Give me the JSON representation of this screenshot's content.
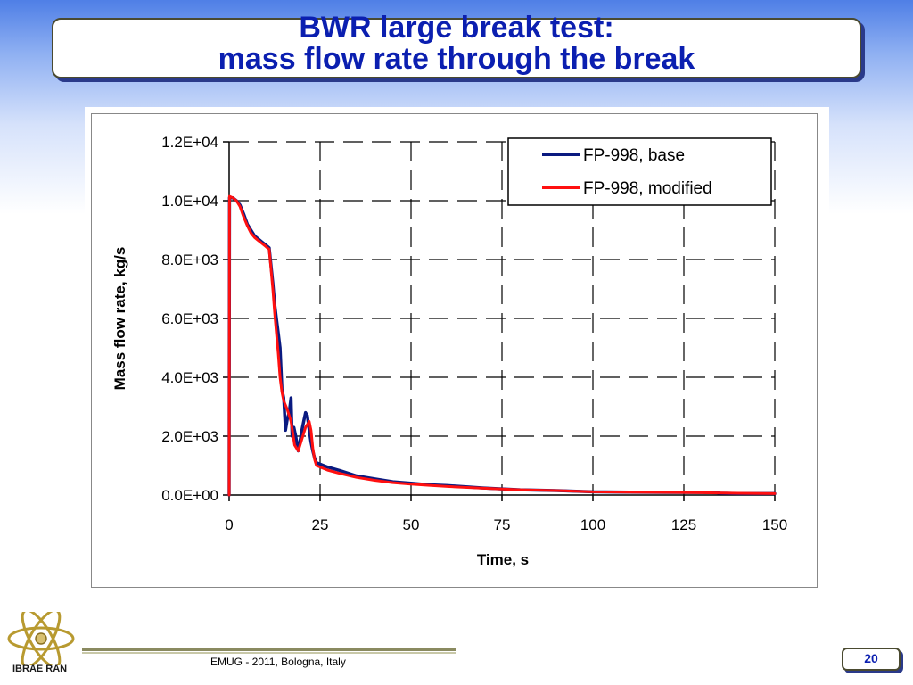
{
  "slide": {
    "title_line1": "BWR large break test:",
    "title_line2": "mass flow rate through the break",
    "footer": "EMUG - 2011, Bologna, Italy",
    "page_number": "20",
    "logo_text": "IBRAE RAN"
  },
  "colors": {
    "title": "#0b1fb0",
    "base_series": "#0a1a80",
    "modified_series": "#ff1010",
    "grid": "#000000"
  },
  "chart_data": {
    "type": "line",
    "title": "",
    "xlabel": "Time, s",
    "ylabel": "Mass flow rate, kg/s",
    "xlim": [
      0,
      150
    ],
    "ylim": [
      0,
      12000
    ],
    "x_ticks": [
      "0",
      "25",
      "50",
      "75",
      "100",
      "125",
      "150"
    ],
    "y_ticks": [
      "0.0E+00",
      "2.0E+03",
      "4.0E+03",
      "6.0E+03",
      "8.0E+03",
      "1.0E+04",
      "1.2E+04"
    ],
    "grid": true,
    "grid_style": "dashed",
    "legend_position": "top-right",
    "series": [
      {
        "name": "FP-998, base",
        "color": "#0a1a80",
        "x": [
          0,
          0.1,
          1,
          2,
          3,
          4,
          5,
          6,
          7,
          8,
          9,
          10,
          10.5,
          11,
          12,
          12.5,
          13,
          13.5,
          14,
          14.5,
          15,
          15.5,
          16,
          16.5,
          17,
          17.3,
          17.8,
          18.3,
          19,
          20,
          20.5,
          21,
          21.5,
          22,
          22.5,
          23,
          23.5,
          24,
          25,
          27,
          30,
          35,
          40,
          45,
          50,
          55,
          60,
          70,
          80,
          90,
          100,
          110,
          120,
          130,
          134,
          135,
          140,
          150
        ],
        "y": [
          0,
          10100,
          10100,
          10000,
          9850,
          9550,
          9200,
          9000,
          8800,
          8700,
          8600,
          8500,
          8450,
          8400,
          7200,
          6500,
          6000,
          5500,
          5000,
          3600,
          3300,
          2200,
          2600,
          2800,
          3300,
          2000,
          2300,
          2000,
          1500,
          2200,
          2500,
          2800,
          2700,
          2200,
          1800,
          1500,
          1250,
          1100,
          1050,
          950,
          850,
          650,
          550,
          450,
          400,
          350,
          320,
          240,
          180,
          150,
          110,
          100,
          90,
          90,
          80,
          60,
          50,
          50
        ]
      },
      {
        "name": "FP-998, modified",
        "color": "#ff1010",
        "x": [
          0,
          0.1,
          1,
          2,
          3,
          4,
          5,
          6,
          7,
          8,
          9,
          10,
          10.5,
          11,
          12,
          12.5,
          13,
          13.5,
          14,
          14.5,
          15,
          16,
          17,
          17.5,
          18,
          19,
          20,
          21,
          22,
          22.5,
          23,
          23.5,
          24,
          25,
          27,
          30,
          35,
          40,
          45,
          50,
          55,
          60,
          70,
          80,
          90,
          100,
          110,
          120,
          130,
          140,
          150
        ],
        "y": [
          0,
          10150,
          10100,
          10000,
          9800,
          9450,
          9150,
          8900,
          8750,
          8650,
          8550,
          8450,
          8400,
          8350,
          7000,
          6200,
          5500,
          4800,
          4000,
          3500,
          3200,
          2900,
          2500,
          2100,
          1700,
          1500,
          1900,
          2300,
          2500,
          2200,
          1600,
          1200,
          1000,
          950,
          850,
          750,
          600,
          500,
          420,
          370,
          330,
          290,
          230,
          180,
          150,
          110,
          100,
          90,
          80,
          60,
          50
        ]
      }
    ]
  }
}
